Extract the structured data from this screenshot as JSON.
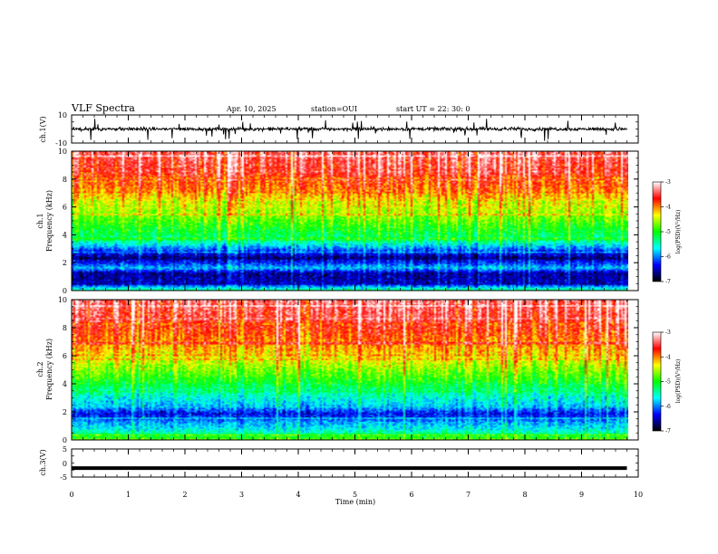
{
  "header": {
    "title": "VLF Spectra",
    "date": "Apr. 10, 2025",
    "station": "station=OUI",
    "start": "start  UT =   22: 30: 0"
  },
  "chart_data": [
    {
      "type": "line",
      "panel": "ch1-waveform",
      "ylabel": "ch.1(V)",
      "ylim": [
        -10,
        10
      ],
      "yticks": [
        "10",
        "-10"
      ],
      "series_desc": "noisy waveform fluctuating about zero with frequent short spikes",
      "x_range_min": [
        0,
        9.8
      ]
    },
    {
      "type": "heatmap",
      "panel": "ch1-spectrogram",
      "ylabel_lines": [
        "ch.1",
        "Frequency  (kHz)"
      ],
      "ylim": [
        0,
        10
      ],
      "yticks": [
        "0",
        "2",
        "4",
        "6",
        "8",
        "10"
      ],
      "x_range_min": [
        0,
        9.8
      ],
      "colorbar": {
        "label": "log(PSD)(V²/Hz)",
        "range": [
          -7,
          -3
        ],
        "ticks": [
          "-3",
          "-4",
          "-5",
          "-6",
          "-7"
        ]
      },
      "band_profile_khz": [
        [
          0,
          -5.4
        ],
        [
          0.5,
          -6.5
        ],
        [
          1.2,
          -6.6
        ],
        [
          1.6,
          -5.8
        ],
        [
          2.3,
          -6.7
        ],
        [
          3.0,
          -6.0
        ],
        [
          3.6,
          -5.3
        ],
        [
          4.5,
          -5.0
        ],
        [
          5.5,
          -4.6
        ],
        [
          6.5,
          -4.3
        ],
        [
          7.5,
          -3.9
        ],
        [
          8.5,
          -3.6
        ],
        [
          10,
          -3.4
        ]
      ]
    },
    {
      "type": "heatmap",
      "panel": "ch2-spectrogram",
      "ylabel_lines": [
        "ch.2",
        "Frequency  (kHz)"
      ],
      "ylim": [
        0,
        10
      ],
      "yticks": [
        "0",
        "2",
        "4",
        "6",
        "8",
        "10"
      ],
      "x_range_min": [
        0,
        9.8
      ],
      "colorbar": {
        "label": "log(PSD)(V²/Hz)",
        "range": [
          -7,
          -3
        ],
        "ticks": [
          "-3",
          "-4",
          "-5",
          "-6",
          "-7"
        ]
      },
      "band_profile_khz": [
        [
          0,
          -4.8
        ],
        [
          0.6,
          -5.6
        ],
        [
          1.2,
          -5.9
        ],
        [
          1.8,
          -6.4
        ],
        [
          2.4,
          -5.8
        ],
        [
          3.0,
          -5.6
        ],
        [
          4.0,
          -5.1
        ],
        [
          5.0,
          -4.7
        ],
        [
          6.0,
          -4.3
        ],
        [
          7.0,
          -4.0
        ],
        [
          8.5,
          -3.6
        ],
        [
          10,
          -3.4
        ]
      ]
    },
    {
      "type": "line",
      "panel": "ch3-waveform",
      "ylabel": "ch.3(V)",
      "ylim": [
        -5,
        5
      ],
      "yticks": [
        "5",
        "0",
        "-5"
      ],
      "constant_value": -1.8,
      "x_range_min": [
        0,
        9.8
      ]
    }
  ],
  "xaxis": {
    "label": "Time  (min)",
    "range": [
      0,
      10
    ],
    "ticks": [
      "0",
      "1",
      "2",
      "3",
      "4",
      "5",
      "6",
      "7",
      "8",
      "9",
      "10"
    ]
  },
  "colors": {
    "colormap": [
      "#000000",
      "#0000ff",
      "#00ffff",
      "#00ff00",
      "#ffff00",
      "#ff0000",
      "#ffffff"
    ]
  }
}
